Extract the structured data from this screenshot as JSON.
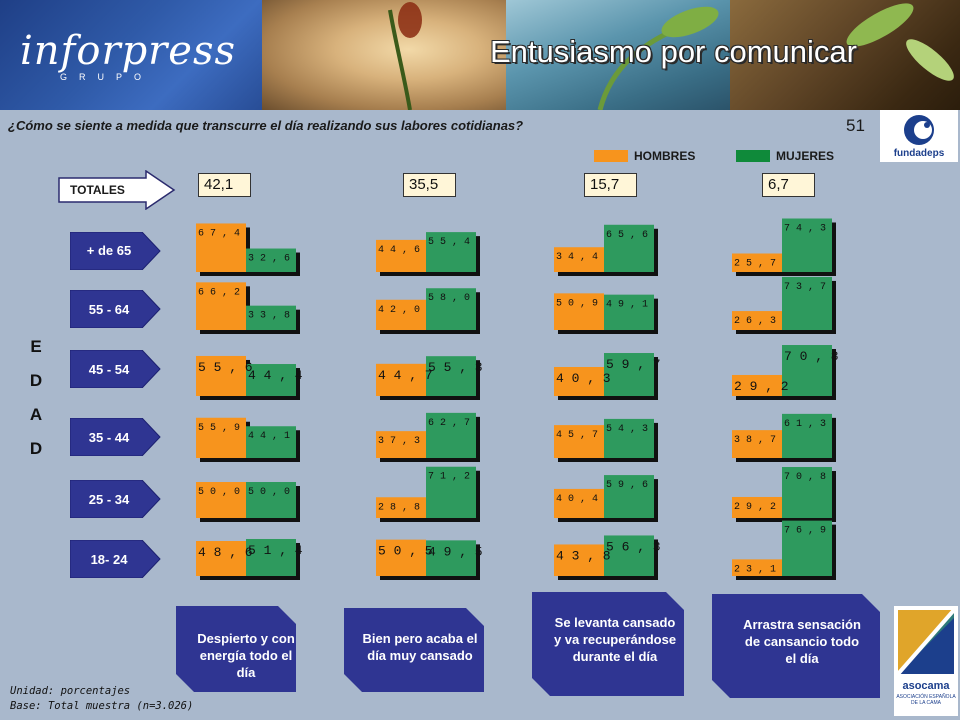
{
  "header": {
    "logo_text": "inforpress",
    "logo_sub": "GRUPO",
    "title": "Entusiasmo por comunicar"
  },
  "question": "¿Cómo se siente a medida que transcurre el día realizando sus labores cotidianas?",
  "page_number": "51",
  "logos": {
    "top_right": "fundadeps",
    "bottom_right": "asocama",
    "bottom_right_sub": "ASOCIACIÓN ESPAÑOLA DE LA CAMA"
  },
  "legend": {
    "hombres": "HOMBRES",
    "mujeres": "MUJERES"
  },
  "colors": {
    "hombres": "#f7941d",
    "mujeres": "#2e9a5e",
    "legend_mujeres": "#0f8a3a",
    "arrow": "#2f3592",
    "background": "#a9b8cc"
  },
  "totales_label": "TOTALES",
  "edad_label": [
    "E",
    "D",
    "A",
    "D"
  ],
  "captions": [
    "Despierto y con energía todo el día",
    "Bien pero acaba el día muy cansado",
    "Se levanta cansado y va recuperándose durante el día",
    "Arrastra sensación de cansancio todo el día"
  ],
  "footnote": {
    "unidad": "Unidad: porcentajes",
    "base": "Base: Total muestra (n=3.026)"
  },
  "chart_data": {
    "type": "bar",
    "totals": [
      "42,1",
      "35,5",
      "15,7",
      "6,7"
    ],
    "rows": [
      "+ de 65",
      "55 - 64",
      "45 - 54",
      "35 - 44",
      "25 - 34",
      "18- 24"
    ],
    "groups": [
      {
        "caption_index": 0,
        "hombres": [
          67.4,
          66.2,
          55.6,
          55.9,
          50.0,
          48.6
        ],
        "mujeres": [
          32.6,
          33.8,
          44.4,
          44.1,
          50.0,
          51.4
        ],
        "hombres_labels": [
          "6 7 , 4",
          "6 6 , 2",
          "5 5 , 6",
          "5 5 , 9",
          "5 0 , 0",
          "4 8 , 6"
        ],
        "mujeres_labels": [
          "3 2 , 6",
          "3 3 , 8",
          "4 4 , 4",
          "4 4 , 1",
          "5 0 , 0",
          "5 1 , 4"
        ]
      },
      {
        "caption_index": 1,
        "hombres": [
          44.6,
          42.0,
          44.7,
          37.3,
          28.8,
          50.5
        ],
        "mujeres": [
          55.4,
          58.0,
          55.3,
          62.7,
          71.2,
          49.5
        ],
        "hombres_labels": [
          "4 4 , 6",
          "4 2 , 0",
          "4 4 , 7",
          "3 7 , 3",
          "2 8 , 8",
          "5 0 , 5"
        ],
        "mujeres_labels": [
          "5 5 , 4",
          "5 8 , 0",
          "5 5 , 3",
          "6 2 , 7",
          "7 1 , 2",
          "4 9 , 5"
        ]
      },
      {
        "caption_index": 2,
        "hombres": [
          34.4,
          50.9,
          40.3,
          45.7,
          40.4,
          43.8
        ],
        "mujeres": [
          65.6,
          49.1,
          59.7,
          54.3,
          59.6,
          56.3
        ],
        "hombres_labels": [
          "3 4 , 4",
          "5 0 , 9",
          "4 0 , 3",
          "4 5 , 7",
          "4 0 , 4",
          "4 3 , 8"
        ],
        "mujeres_labels": [
          "6 5 , 6",
          "4 9 , 1",
          "5 9 , 7",
          "5 4 , 3",
          "5 9 , 6",
          "5 6 , 3"
        ]
      },
      {
        "caption_index": 3,
        "hombres": [
          25.7,
          26.3,
          29.2,
          38.7,
          29.2,
          23.1
        ],
        "mujeres": [
          74.3,
          73.7,
          70.8,
          61.3,
          70.8,
          76.9
        ],
        "hombres_labels": [
          "2 5 , 7",
          "2 6 , 3",
          "2 9 , 2",
          "3 8 , 7",
          "2 9 , 2",
          "2 3 , 1"
        ],
        "mujeres_labels": [
          "7 4 , 3",
          "7 3 , 7",
          "7 0 , 8",
          "6 1 , 3",
          "7 0 , 8",
          "7 6 , 9"
        ]
      }
    ]
  }
}
